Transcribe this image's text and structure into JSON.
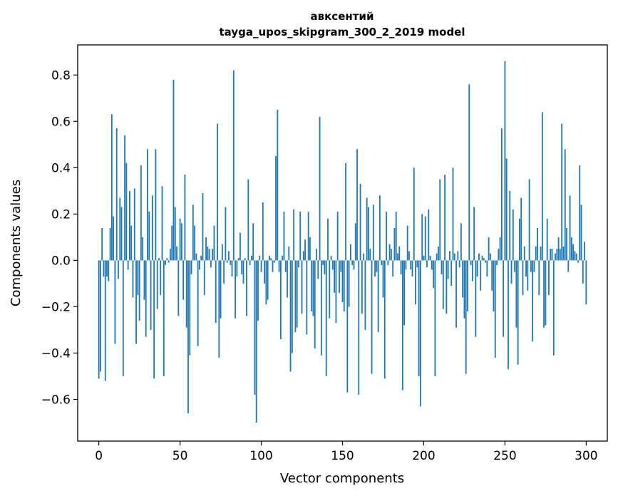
{
  "chart_data": {
    "type": "bar",
    "title": "авксентий",
    "subtitle": "tayga_upos_skipgram_300_2_2019 model",
    "xlabel": "Vector components",
    "ylabel": "Components values",
    "xlim": [
      -13,
      313
    ],
    "ylim": [
      -0.78,
      0.93
    ],
    "xticks": [
      0,
      50,
      100,
      150,
      200,
      250,
      300
    ],
    "yticks": [
      -0.6,
      -0.4,
      -0.2,
      0.0,
      0.2,
      0.4,
      0.6,
      0.8
    ],
    "xtick_labels": [
      "0",
      "50",
      "100",
      "150",
      "200",
      "250",
      "300"
    ],
    "ytick_labels": [
      "−0.6",
      "−0.4",
      "−0.2",
      "0.0",
      "0.2",
      "0.4",
      "0.6",
      "0.8"
    ],
    "bar_color": "#1f77b4",
    "grid": false,
    "values": [
      -0.51,
      -0.48,
      0.14,
      -0.07,
      -0.52,
      -0.07,
      -0.09,
      0.14,
      0.63,
      0.19,
      -0.36,
      0.57,
      -0.08,
      0.27,
      0.23,
      -0.5,
      0.54,
      0.42,
      -0.04,
      0.3,
      0.15,
      -0.16,
      0.31,
      -0.36,
      -0.15,
      -0.26,
      0.41,
      0.1,
      -0.17,
      -0.33,
      0.48,
      0.21,
      -0.3,
      0.28,
      -0.51,
      0.48,
      -0.21,
      0.01,
      -0.15,
      0.32,
      -0.5,
      -0.02,
      0.01,
      -0.01,
      0.05,
      0.15,
      0.78,
      0.23,
      0.06,
      -0.24,
      0.18,
      0.16,
      -0.17,
      0.37,
      -0.29,
      -0.66,
      -0.41,
      -0.06,
      0.24,
      0.15,
      0.03,
      -0.37,
      -0.04,
      0.02,
      0.29,
      -0.15,
      0.1,
      0.06,
      0.05,
      -0.03,
      0.05,
      0.15,
      -0.27,
      0.59,
      -0.42,
      -0.25,
      0.07,
      -0.1,
      0.23,
      -0.01,
      0.04,
      -0.02,
      -0.07,
      0.82,
      -0.25,
      -0.07,
      0.01,
      0.12,
      -0.06,
      -0.1,
      0.01,
      -0.24,
      0.35,
      -0.02,
      0.02,
      0.16,
      -0.58,
      -0.7,
      -0.26,
      0.02,
      -0.05,
      0.25,
      -0.1,
      -0.19,
      -0.17,
      0.02,
      0.01,
      -0.05,
      -0.01,
      0.45,
      0.65,
      -0.05,
      -0.34,
      0.02,
      0.21,
      -0.05,
      -0.16,
      0.06,
      -0.48,
      -0.4,
      0.22,
      -0.31,
      -0.29,
      -0.03,
      0.21,
      -0.23,
      0.04,
      0.09,
      -0.32,
      0.21,
      0.1,
      -0.22,
      -0.24,
      -0.38,
      0.05,
      -0.08,
      0.62,
      -0.41,
      -0.02,
      -0.06,
      -0.5,
      0.18,
      -0.25,
      0.02,
      -0.04,
      -0.14,
      -0.27,
      0.21,
      -0.14,
      -0.05,
      -0.18,
      -0.22,
      0.42,
      -0.57,
      -0.2,
      0.07,
      -0.02,
      -0.04,
      0.16,
      0.48,
      -0.58,
      0.33,
      -0.23,
      0.03,
      -0.3,
      0.27,
      0.23,
      0.05,
      -0.49,
      0.24,
      -0.07,
      -0.05,
      -0.31,
      0.28,
      -0.02,
      -0.16,
      -0.51,
      0.21,
      -0.02,
      0.07,
      0.05,
      -0.07,
      0.14,
      0.21,
      0.03,
      0.06,
      -0.06,
      -0.56,
      -0.28,
      -0.04,
      0.15,
      0.04,
      -0.04,
      -0.07,
      0.4,
      -0.19,
      -0.03,
      -0.5,
      -0.63,
      0.2,
      0.02,
      0.19,
      -0.03,
      0.22,
      0.02,
      -0.04,
      -0.12,
      -0.5,
      0.03,
      0.06,
      0.35,
      -0.06,
      -0.21,
      0.37,
      -0.23,
      -0.08,
      0.04,
      -0.11,
      0.4,
      0.03,
      -0.29,
      0.04,
      -0.03,
      0.16,
      -0.16,
      -0.25,
      -0.49,
      -0.22,
      0.76,
      -0.02,
      -0.09,
      0.23,
      -0.33,
      -0.07,
      0.03,
      -0.13,
      0.02,
      0.01,
      -0.01,
      -0.07,
      0.1,
      0.03,
      -0.13,
      -0.22,
      -0.42,
      -0.02,
      0.05,
      0.1,
      0.57,
      -0.33,
      0.86,
      0.44,
      -0.47,
      0.3,
      -0.1,
      0.22,
      -0.05,
      -0.29,
      -0.45,
      0.18,
      0.27,
      -0.15,
      0.06,
      -0.07,
      -0.13,
      0.35,
      -0.05,
      -0.35,
      -0.05,
      0.06,
      0.14,
      -0.15,
      0.06,
      0.64,
      -0.29,
      -0.28,
      0.18,
      -0.15,
      0.05,
      0.05,
      -0.41,
      0.03,
      0.05,
      0.1,
      0.05,
      0.59,
      0.06,
      0.48,
      0.14,
      -0.05,
      0.28,
      0.1,
      0.07,
      0.04,
      0.03,
      -0.01,
      0.41,
      0.24,
      -0.1,
      0.08,
      -0.19
    ]
  }
}
